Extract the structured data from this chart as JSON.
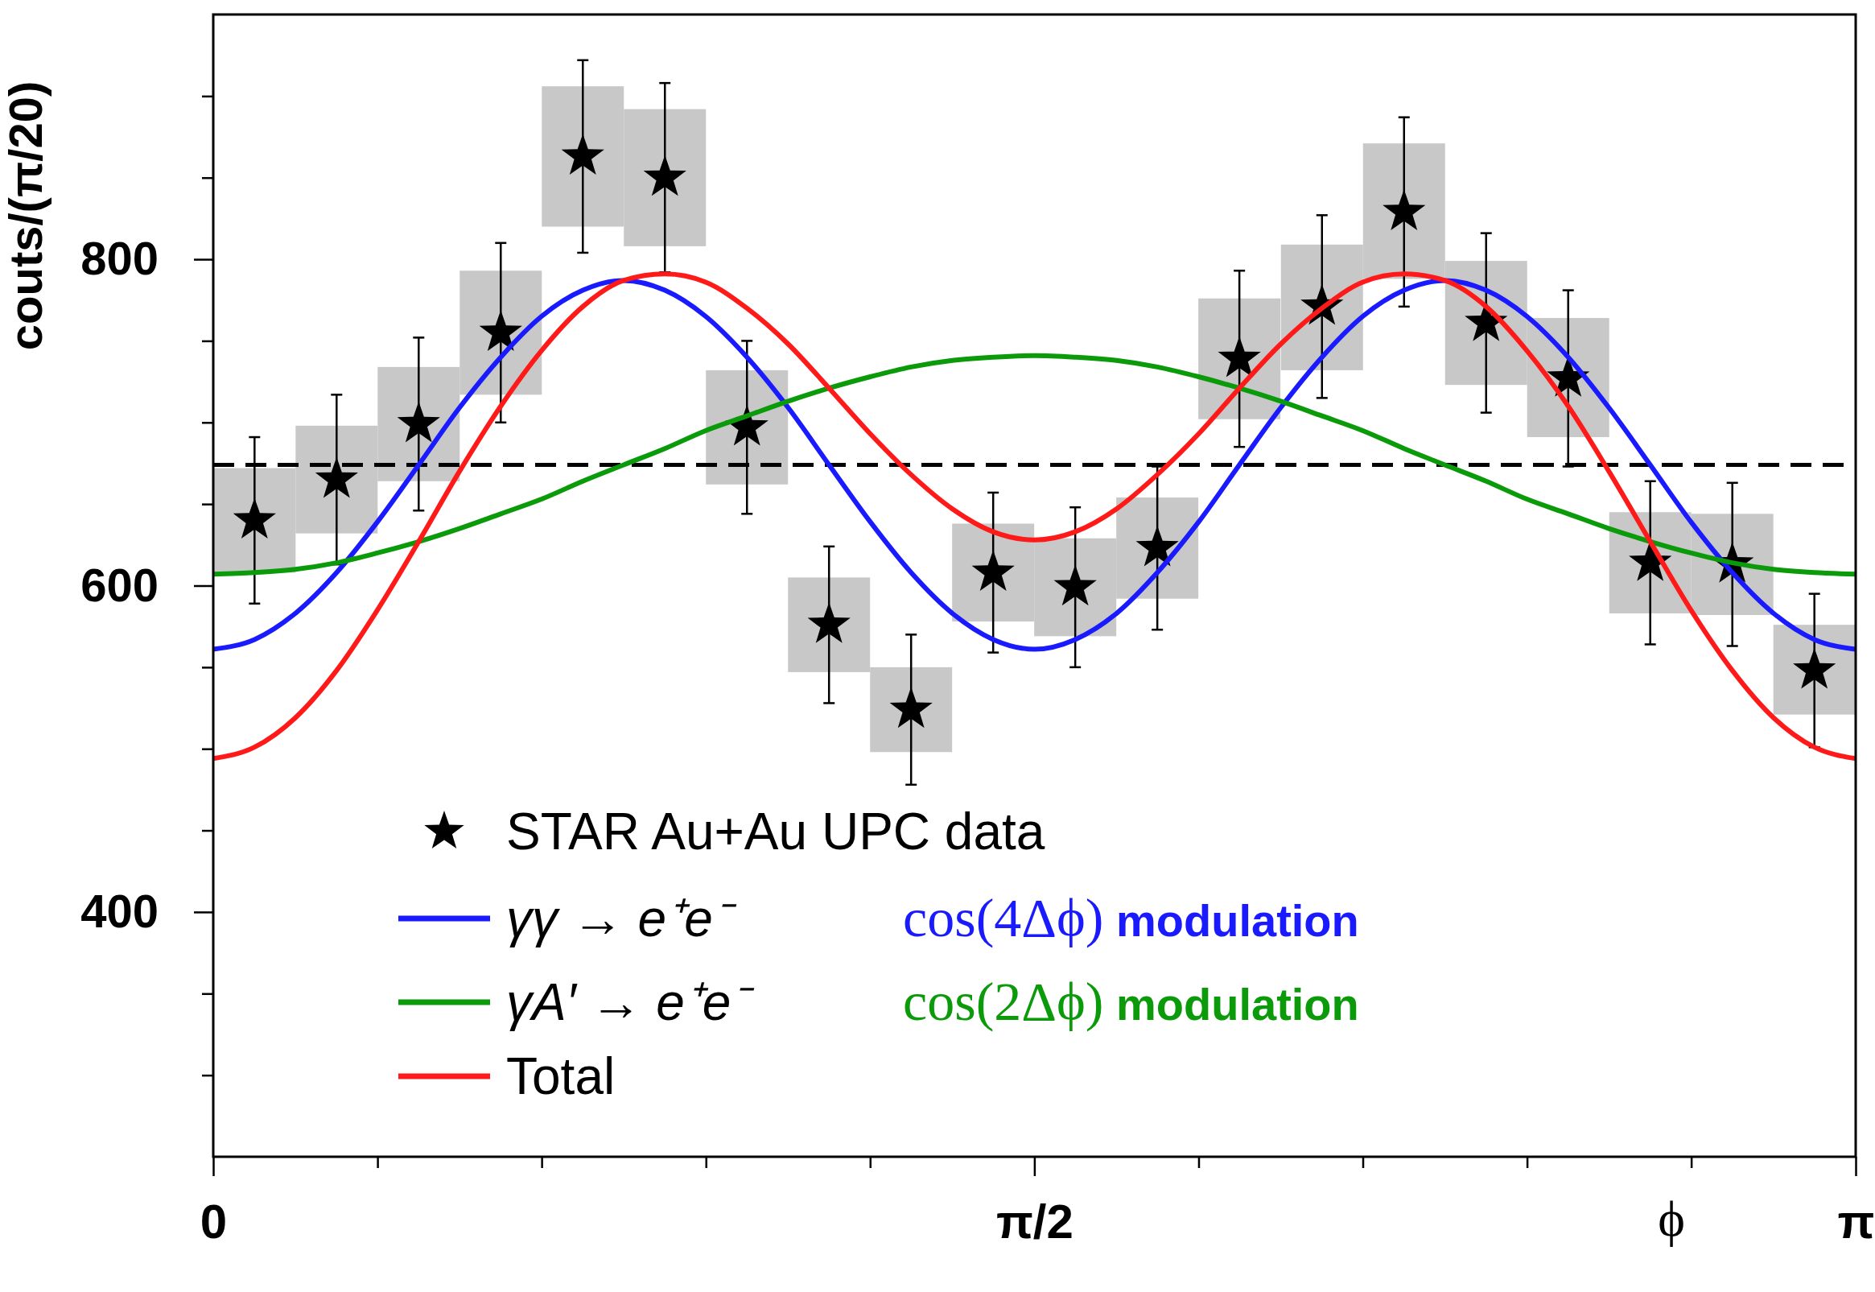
{
  "chart_data": {
    "type": "scatter",
    "ylabel": "couts/(π/20)",
    "xlabel": "ϕ",
    "xlim": [
      0,
      3.142
    ],
    "ylim": [
      250,
      950
    ],
    "xticks": [
      {
        "value": 0,
        "label": "0"
      },
      {
        "value": 0.3142,
        "label": null
      },
      {
        "value": 0.6283,
        "label": null
      },
      {
        "value": 0.9425,
        "label": null
      },
      {
        "value": 1.2566,
        "label": null
      },
      {
        "value": 1.5708,
        "label": "π/2"
      },
      {
        "value": 1.885,
        "label": null
      },
      {
        "value": 2.1991,
        "label": null
      },
      {
        "value": 2.5133,
        "label": null
      },
      {
        "value": 2.8274,
        "label": null
      },
      {
        "value": 3.142,
        "label": "π"
      }
    ],
    "yticks": [
      {
        "value": 300,
        "label": null
      },
      {
        "value": 350,
        "label": null
      },
      400,
      {
        "value": 450,
        "label": null
      },
      {
        "value": 500,
        "label": null
      },
      {
        "value": 550,
        "label": null
      },
      600,
      {
        "value": 650,
        "label": null
      },
      {
        "value": 700,
        "label": null
      },
      {
        "value": 750,
        "label": null
      },
      800,
      {
        "value": 850,
        "label": null
      },
      {
        "value": 900,
        "label": null
      }
    ],
    "legend": "bottom left",
    "grid": false,
    "ref_lines": [
      {
        "axis": "y",
        "value": 674,
        "color": "#000000",
        "line_style": "dashed"
      }
    ],
    "annotations": [
      "cos(4Δϕ) modulation",
      "cos(2Δϕ) modulation"
    ],
    "series": [
      {
        "type": "bar",
        "color": "#c8c8c8",
        "x": [
          0.079,
          0.236,
          0.393,
          0.55,
          0.707,
          0.864,
          1.021,
          1.178,
          1.335,
          1.492,
          1.649,
          1.806,
          1.963,
          2.121,
          2.278,
          2.435,
          2.592,
          2.749,
          2.906,
          3.063
        ],
        "base": [
          608,
          632,
          664,
          717,
          820,
          808,
          662,
          547,
          498,
          578,
          569,
          592,
          702,
          732,
          788,
          723,
          691,
          583,
          582,
          521
        ],
        "values": [
          64,
          66,
          70,
          76,
          86,
          84,
          70,
          58,
          52,
          60,
          60,
          62,
          74,
          77,
          83,
          76,
          73,
          62,
          62,
          55
        ]
      },
      {
        "name": "STAR Au+Au UPC data",
        "color": "#000000",
        "marker": "star",
        "x": [
          0.079,
          0.236,
          0.393,
          0.55,
          0.707,
          0.864,
          1.021,
          1.178,
          1.335,
          1.492,
          1.649,
          1.806,
          1.963,
          2.121,
          2.278,
          2.435,
          2.592,
          2.749,
          2.906,
          3.063
        ],
        "values": [
          640,
          665,
          699,
          755,
          863,
          850,
          697,
          576,
          524,
          608,
          599,
          623,
          739,
          771,
          829,
          761,
          727,
          614,
          613,
          548
        ],
        "errors": [
          51,
          52,
          53,
          55,
          59,
          58,
          53,
          48,
          46,
          49,
          49,
          50,
          54,
          56,
          58,
          55,
          54,
          50,
          50,
          47
        ]
      },
      {
        "type": "line",
        "name": "γγ → e⁺e⁻",
        "color": "#1a1aff",
        "line_style": "solid",
        "x": [
          0,
          0.079,
          0.157,
          0.236,
          0.314,
          0.393,
          0.471,
          0.55,
          0.628,
          0.707,
          0.785,
          0.864,
          0.942,
          1.021,
          1.1,
          1.178,
          1.257,
          1.335,
          1.414,
          1.492,
          1.571,
          1.649,
          1.728,
          1.806,
          1.885,
          1.963,
          2.042,
          2.121,
          2.199,
          2.278,
          2.356,
          2.435,
          2.513,
          2.592,
          2.67,
          2.749,
          2.827,
          2.906,
          2.985,
          3.063,
          3.142
        ],
        "values": [
          561,
          567,
          583,
          608,
          639,
          674,
          709,
          740,
          765,
          781,
          787,
          781,
          765,
          740,
          709,
          674,
          639,
          608,
          583,
          567,
          561,
          567,
          583,
          608,
          639,
          674,
          709,
          740,
          765,
          781,
          787,
          781,
          765,
          740,
          709,
          674,
          639,
          608,
          583,
          567,
          561
        ]
      },
      {
        "type": "line",
        "name": "γA′ → e⁺e⁻",
        "color": "#0a9a0a",
        "line_style": "solid",
        "x": [
          0,
          0.079,
          0.157,
          0.236,
          0.314,
          0.393,
          0.471,
          0.55,
          0.628,
          0.707,
          0.785,
          0.864,
          0.942,
          1.021,
          1.1,
          1.178,
          1.257,
          1.335,
          1.414,
          1.492,
          1.571,
          1.649,
          1.728,
          1.806,
          1.885,
          1.963,
          2.042,
          2.121,
          2.199,
          2.278,
          2.356,
          2.435,
          2.513,
          2.592,
          2.67,
          2.749,
          2.827,
          2.906,
          2.985,
          3.063,
          3.142
        ],
        "values": [
          607,
          608,
          610,
          614,
          620,
          627,
          635,
          644,
          653,
          664,
          674,
          684,
          695,
          704,
          713,
          721,
          728,
          734,
          738,
          740,
          741,
          740,
          738,
          734,
          728,
          721,
          713,
          704,
          695,
          684,
          674,
          664,
          653,
          644,
          635,
          627,
          620,
          614,
          610,
          608,
          607
        ]
      },
      {
        "type": "line",
        "name": "Total",
        "color": "#ff1a1a",
        "line_style": "solid",
        "x": [
          0,
          0.079,
          0.157,
          0.236,
          0.314,
          0.393,
          0.471,
          0.55,
          0.628,
          0.707,
          0.785,
          0.864,
          0.942,
          1.021,
          1.1,
          1.178,
          1.257,
          1.335,
          1.414,
          1.492,
          1.571,
          1.649,
          1.728,
          1.806,
          1.885,
          1.963,
          2.042,
          2.121,
          2.199,
          2.278,
          2.356,
          2.435,
          2.513,
          2.592,
          2.67,
          2.749,
          2.827,
          2.906,
          2.985,
          3.063,
          3.142
        ],
        "values": [
          494,
          501,
          519,
          548,
          585,
          627,
          670,
          710,
          744,
          771,
          787,
          791,
          786,
          770,
          748,
          721,
          693,
          668,
          647,
          633,
          628,
          633,
          647,
          668,
          693,
          721,
          748,
          770,
          786,
          791,
          787,
          771,
          744,
          710,
          670,
          627,
          585,
          548,
          519,
          501,
          494
        ]
      }
    ]
  }
}
